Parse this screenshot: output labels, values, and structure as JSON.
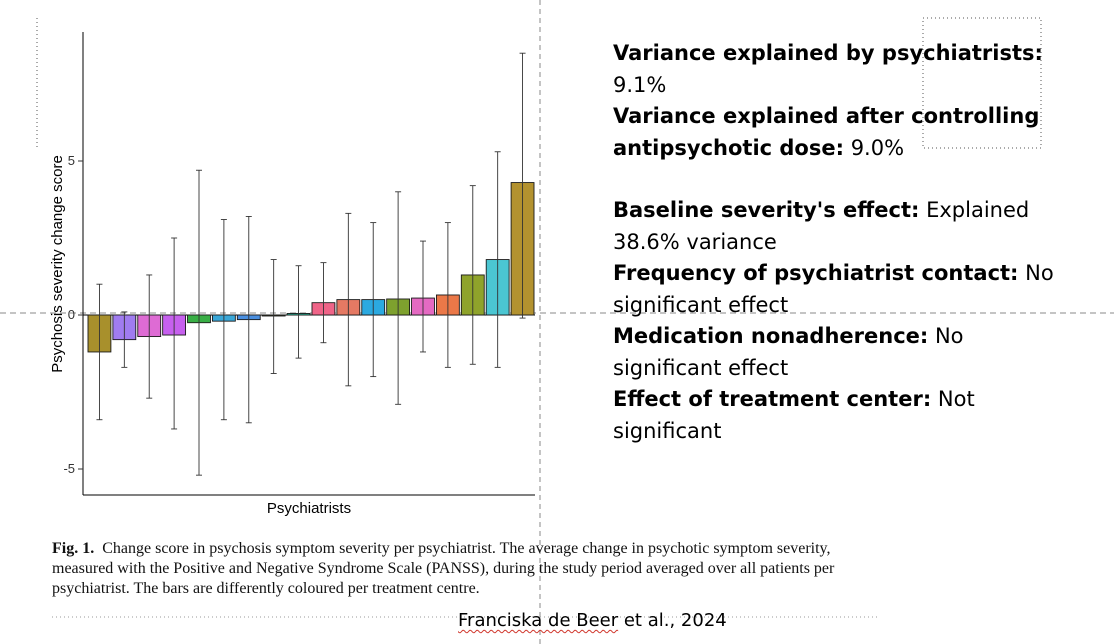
{
  "chart_data": {
    "type": "bar",
    "title": "",
    "xlabel": "Psychiatrists",
    "ylabel": "Psychosis severity change score",
    "ylim": [
      -5.9,
      9.2
    ],
    "yticks": [
      -5,
      0,
      5
    ],
    "ytick_labels": [
      "-5",
      "0",
      "5"
    ],
    "reference_lines": {
      "horizontal_at": 0
    },
    "bars": [
      {
        "value": -1.2,
        "ci_low": -3.4,
        "ci_high": 1.0,
        "color": "#A8902C"
      },
      {
        "value": -0.8,
        "ci_low": -1.7,
        "ci_high": 0.1,
        "color": "#A07CF0"
      },
      {
        "value": -0.7,
        "ci_low": -2.7,
        "ci_high": 1.3,
        "color": "#DE6BD4"
      },
      {
        "value": -0.65,
        "ci_low": -3.7,
        "ci_high": 2.5,
        "color": "#C660EE"
      },
      {
        "value": -0.25,
        "ci_low": -5.2,
        "ci_high": 4.7,
        "color": "#38AE45"
      },
      {
        "value": -0.2,
        "ci_low": -3.4,
        "ci_high": 3.1,
        "color": "#39A7D8"
      },
      {
        "value": -0.15,
        "ci_low": -3.5,
        "ci_high": 3.2,
        "color": "#4A8FE0"
      },
      {
        "value": -0.03,
        "ci_low": -1.9,
        "ci_high": 1.8,
        "color": "#7A7A2A"
      },
      {
        "value": 0.05,
        "ci_low": -1.4,
        "ci_high": 1.6,
        "color": "#2EC8A8"
      },
      {
        "value": 0.4,
        "ci_low": -0.9,
        "ci_high": 1.7,
        "color": "#EF6488"
      },
      {
        "value": 0.5,
        "ci_low": -2.3,
        "ci_high": 3.3,
        "color": "#E57963"
      },
      {
        "value": 0.5,
        "ci_low": -2.0,
        "ci_high": 3.0,
        "color": "#2BA9E0"
      },
      {
        "value": 0.52,
        "ci_low": -2.9,
        "ci_high": 4.0,
        "color": "#7EA12E"
      },
      {
        "value": 0.55,
        "ci_low": -1.2,
        "ci_high": 2.4,
        "color": "#E46AC2"
      },
      {
        "value": 0.65,
        "ci_low": -1.7,
        "ci_high": 3.0,
        "color": "#EB7848"
      },
      {
        "value": 1.3,
        "ci_low": -1.6,
        "ci_high": 4.2,
        "color": "#8FA32B"
      },
      {
        "value": 1.8,
        "ci_low": -1.7,
        "ci_high": 5.3,
        "color": "#4BC6D2"
      },
      {
        "value": 4.3,
        "ci_low": -0.1,
        "ci_high": 8.5,
        "color": "#B3922F"
      }
    ]
  },
  "info_panel": {
    "items": [
      {
        "label": "Variance explained by psychiatrists:",
        "value": "9.1%"
      },
      {
        "label": "Variance explained after controlling antipsychotic dose:",
        "value": "9.0%"
      },
      {
        "label": "Baseline severity's effect:",
        "value": "Explained 38.6% variance"
      },
      {
        "label": "Frequency of psychiatrist contact:",
        "value": "No significant effect"
      },
      {
        "label": "Medication nonadherence:",
        "value": "No significant effect"
      },
      {
        "label": "Effect of treatment center:",
        "value": "Not significant"
      }
    ]
  },
  "caption": {
    "fig_label": "Fig. 1",
    "text": "Change score in psychosis symptom severity per psychiatrist. The average change in psychotic symptom severity, measured with the Positive and Negative Syndrome Scale (PANSS), during the study period averaged over all patients per psychiatrist. The bars are differently coloured per treatment centre."
  },
  "citation": {
    "author": "Franciska de Beer",
    "rest": " et al., 2024"
  }
}
